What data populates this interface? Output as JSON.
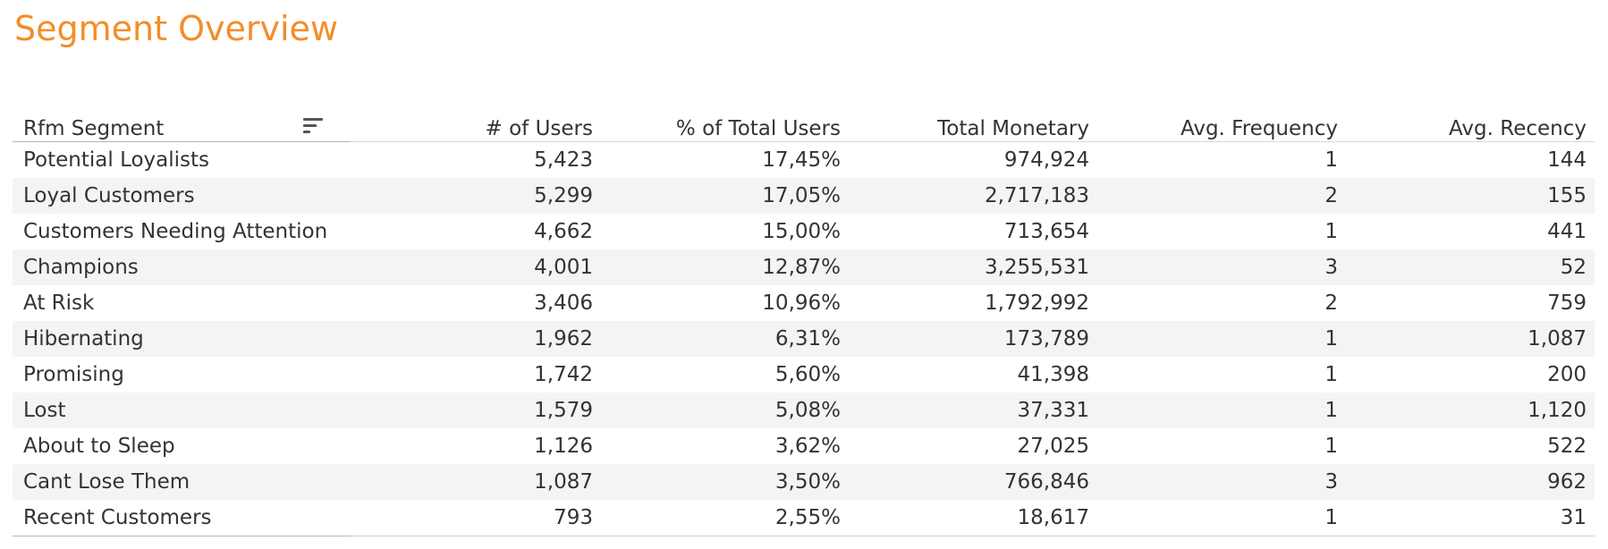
{
  "title": "Segment Overview",
  "columns": {
    "segment": "Rfm Segment",
    "users": "# of Users",
    "pct_users": "% of Total Users",
    "monetary": "Total Monetary",
    "frequency": "Avg. Frequency",
    "recency": "Avg. Recency"
  },
  "sort_icon": "sort-descending-icon",
  "colors": {
    "title": "#F28E2B",
    "text": "#333333",
    "band": "#f4f4f4"
  },
  "rows": [
    {
      "segment": "Potential Loyalists",
      "users": "5,423",
      "pct_users": "17,45%",
      "monetary": "974,924",
      "frequency": "1",
      "recency": "144"
    },
    {
      "segment": "Loyal Customers",
      "users": "5,299",
      "pct_users": "17,05%",
      "monetary": "2,717,183",
      "frequency": "2",
      "recency": "155"
    },
    {
      "segment": "Customers Needing Attention",
      "users": "4,662",
      "pct_users": "15,00%",
      "monetary": "713,654",
      "frequency": "1",
      "recency": "441"
    },
    {
      "segment": "Champions",
      "users": "4,001",
      "pct_users": "12,87%",
      "monetary": "3,255,531",
      "frequency": "3",
      "recency": "52"
    },
    {
      "segment": "At Risk",
      "users": "3,406",
      "pct_users": "10,96%",
      "monetary": "1,792,992",
      "frequency": "2",
      "recency": "759"
    },
    {
      "segment": "Hibernating",
      "users": "1,962",
      "pct_users": "6,31%",
      "monetary": "173,789",
      "frequency": "1",
      "recency": "1,087"
    },
    {
      "segment": "Promising",
      "users": "1,742",
      "pct_users": "5,60%",
      "monetary": "41,398",
      "frequency": "1",
      "recency": "200"
    },
    {
      "segment": "Lost",
      "users": "1,579",
      "pct_users": "5,08%",
      "monetary": "37,331",
      "frequency": "1",
      "recency": "1,120"
    },
    {
      "segment": "About to Sleep",
      "users": "1,126",
      "pct_users": "3,62%",
      "monetary": "27,025",
      "frequency": "1",
      "recency": "522"
    },
    {
      "segment": "Cant Lose Them",
      "users": "1,087",
      "pct_users": "3,50%",
      "monetary": "766,846",
      "frequency": "3",
      "recency": "962"
    },
    {
      "segment": "Recent Customers",
      "users": "793",
      "pct_users": "2,55%",
      "monetary": "18,617",
      "frequency": "1",
      "recency": "31"
    }
  ]
}
